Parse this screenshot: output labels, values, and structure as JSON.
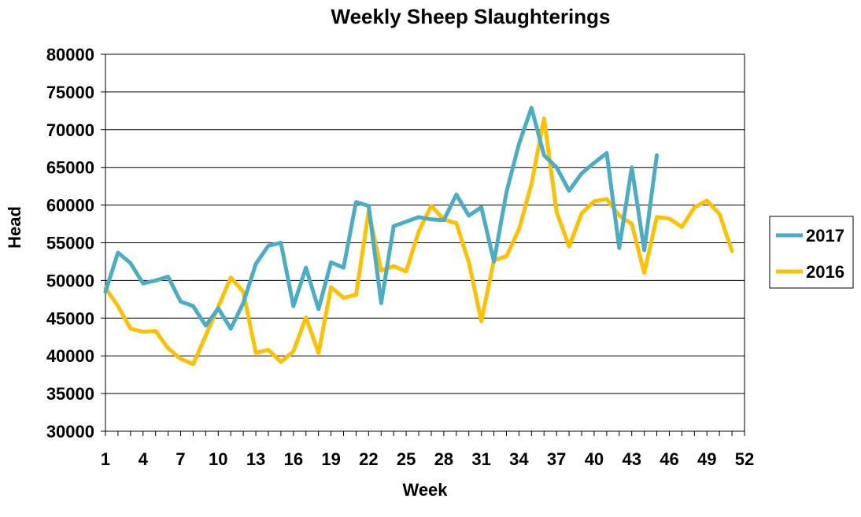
{
  "chart_data": {
    "type": "line",
    "title": "Weekly Sheep Slaughterings",
    "xlabel": "Week",
    "ylabel": "Head",
    "xlim": [
      1,
      52
    ],
    "ylim": [
      30000,
      80000
    ],
    "y_ticks": [
      30000,
      35000,
      40000,
      45000,
      50000,
      55000,
      60000,
      65000,
      70000,
      75000,
      80000
    ],
    "x_ticks": [
      1,
      4,
      7,
      10,
      13,
      16,
      19,
      22,
      25,
      28,
      31,
      34,
      37,
      40,
      43,
      46,
      49,
      52
    ],
    "grid": "horizontal",
    "legend_position": "right",
    "series": [
      {
        "name": "2017",
        "color": "#4bacc6",
        "x": [
          1,
          2,
          3,
          4,
          5,
          6,
          7,
          8,
          9,
          10,
          11,
          12,
          13,
          14,
          15,
          16,
          17,
          18,
          19,
          20,
          21,
          22,
          23,
          24,
          25,
          26,
          27,
          28,
          29,
          30,
          31,
          32,
          33,
          34,
          35,
          36,
          37,
          38,
          39,
          40,
          41,
          42,
          43,
          44,
          45
        ],
        "values": [
          48500,
          53700,
          52300,
          49600,
          50000,
          50500,
          47200,
          46600,
          44000,
          46300,
          43600,
          47000,
          52200,
          54600,
          55000,
          46600,
          51700,
          46200,
          52400,
          51700,
          60400,
          59900,
          47000,
          57200,
          57800,
          58400,
          58100,
          58000,
          61400,
          58600,
          59700,
          52500,
          61700,
          68100,
          72900,
          66600,
          65000,
          61900,
          64200,
          65600,
          66900,
          54300,
          65000,
          54000,
          66600
        ]
      },
      {
        "name": "2016",
        "color": "#ffc000",
        "x": [
          1,
          2,
          3,
          4,
          5,
          6,
          7,
          8,
          9,
          10,
          11,
          12,
          13,
          14,
          15,
          16,
          17,
          18,
          19,
          20,
          21,
          22,
          23,
          24,
          25,
          26,
          27,
          28,
          29,
          30,
          31,
          32,
          33,
          34,
          35,
          36,
          37,
          38,
          39,
          40,
          41,
          42,
          43,
          44,
          45,
          46,
          47,
          48,
          49,
          50,
          51
        ],
        "values": [
          49000,
          46600,
          43600,
          43200,
          43300,
          41000,
          39600,
          38900,
          42700,
          46500,
          50400,
          48500,
          40400,
          40800,
          39200,
          40600,
          45100,
          40400,
          49100,
          47700,
          48100,
          59200,
          51300,
          51900,
          51200,
          56500,
          59900,
          58100,
          57600,
          52400,
          44600,
          52700,
          53200,
          56800,
          62800,
          71500,
          59100,
          54500,
          58900,
          60500,
          60800,
          58600,
          57500,
          51000,
          58400,
          58200,
          57100,
          59700,
          60600,
          58800,
          53900
        ]
      }
    ]
  }
}
